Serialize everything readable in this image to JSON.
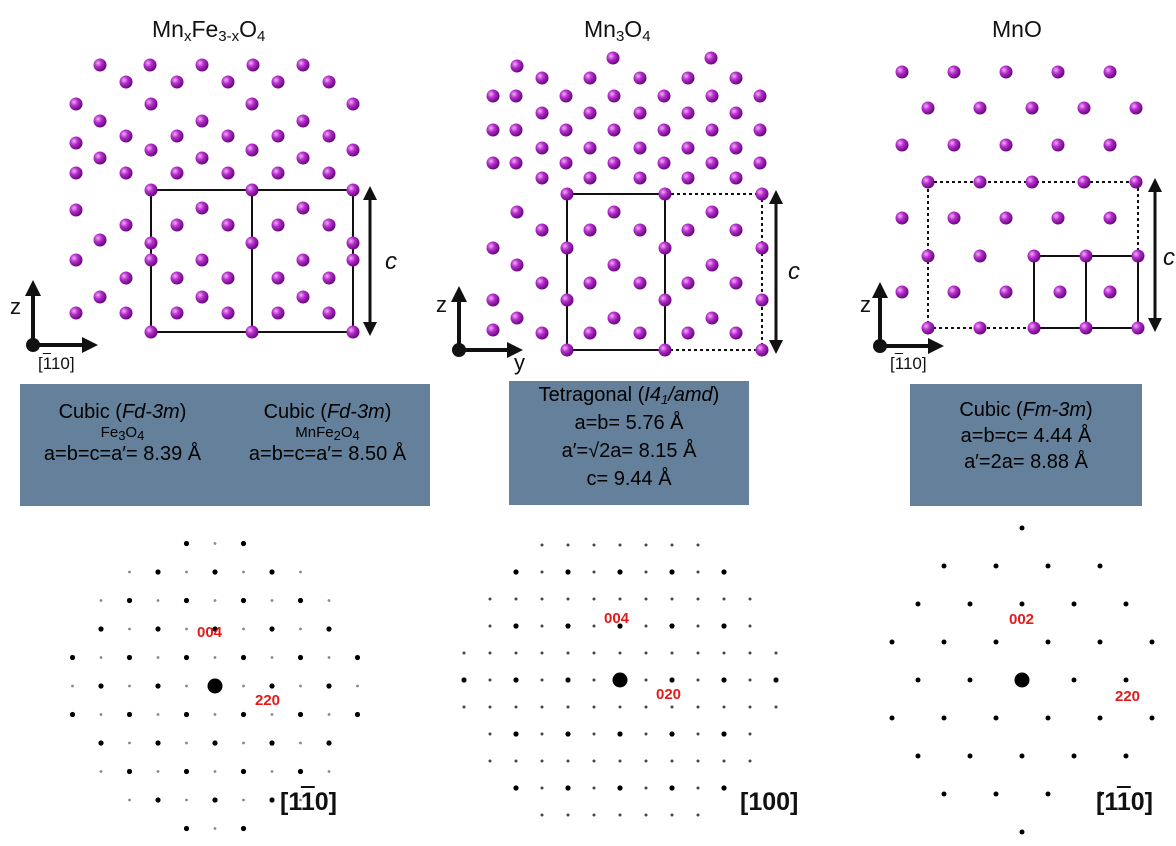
{
  "panels": [
    {
      "title_parts": {
        "a": "Mn",
        "b": "x",
        "c": "Fe",
        "d": "3-x",
        "e": "O",
        "f": "4"
      },
      "axis_label": "z",
      "direction_label": "[110]",
      "c_label": "c",
      "box_left": {
        "structure": "Cubic",
        "space_group": "Fd-3m",
        "compound_parts": {
          "a": "Fe",
          "b": "3",
          "c": "O",
          "d": "4"
        },
        "lattice": "a=b=c=a′= 8.39 Å"
      },
      "box_right": {
        "structure": "Cubic",
        "space_group": "Fd-3m",
        "compound_parts": {
          "a": "MnFe",
          "b": "2",
          "c": "O",
          "d": "4"
        },
        "lattice": "a=b=c=a′= 8.50 Å"
      },
      "reflections": [
        "004",
        "220"
      ],
      "zone_axis": {
        "open": "[1",
        "bar": "1",
        "close": "0]"
      }
    },
    {
      "title_parts": {
        "a": "Mn",
        "b": "3",
        "c": "O",
        "d": "4"
      },
      "axis_z": "z",
      "axis_y": "y",
      "c_label": "c",
      "box": {
        "structure": "Tetragonal",
        "space_group_pre": "I",
        "space_group_mid": "4",
        "space_group_sub": "1",
        "space_group_post": "/amd",
        "line2": "a=b= 5.76 Å",
        "line3": "a′=√2a= 8.15 Å",
        "line4": "c= 9.44 Å"
      },
      "reflections": [
        "004",
        "020"
      ],
      "zone_axis": "[100]"
    },
    {
      "title": "MnO",
      "axis_label": "z",
      "direction_label": "[110]",
      "c_label": "c",
      "box": {
        "structure": "Cubic",
        "space_group": "Fm-3m",
        "line2": "a=b=c= 4.44 Å",
        "line3": "a′=2a= 8.88 Å"
      },
      "reflections": [
        "002",
        "220"
      ],
      "zone_axis": {
        "open": "[1",
        "bar": "1",
        "close": "0]"
      }
    }
  ],
  "colors": {
    "atom": "#a020b8",
    "atom_highlight": "#e8a0f0",
    "info_box": "#64809b",
    "reflection_label": "#e31b1b",
    "diffraction_spot": "#000000"
  }
}
